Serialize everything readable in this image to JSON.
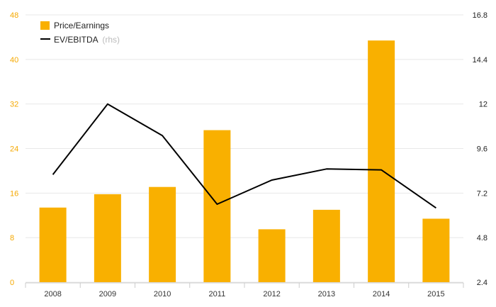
{
  "chart_data": {
    "type": "bar+line",
    "title": "",
    "categories": [
      "2008",
      "2009",
      "2010",
      "2011",
      "2012",
      "2013",
      "2014",
      "2015"
    ],
    "series": [
      {
        "name": "Price/Earnings",
        "type": "bar",
        "axis": "left",
        "color": "#f9b000",
        "values": [
          13.4,
          15.8,
          17.1,
          27.3,
          9.5,
          13.0,
          43.4,
          11.4
        ]
      },
      {
        "name": "EV/EBITDA",
        "name_suffix": "(rhs)",
        "type": "line",
        "axis": "right",
        "color": "#000000",
        "values": [
          8.2,
          12.0,
          10.3,
          6.6,
          7.9,
          8.5,
          8.45,
          6.4
        ]
      }
    ],
    "y_left": {
      "min": 0,
      "max": 48,
      "ticks": [
        "0",
        "8",
        "16",
        "24",
        "32",
        "40",
        "48"
      ],
      "color": "#f5a800"
    },
    "y_right": {
      "min": 2.4,
      "max": 16.8,
      "ticks": [
        "2.4",
        "4.8",
        "7.2",
        "9.6",
        "12",
        "14.4",
        "16.8"
      ],
      "color": "#222222"
    },
    "grid": true,
    "legend_position": "top-left"
  }
}
